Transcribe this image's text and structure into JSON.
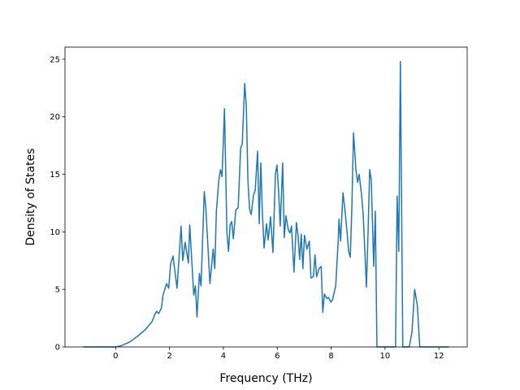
{
  "chart_data": {
    "type": "line",
    "xlabel": "Frequency (THz)",
    "ylabel": "Density of States",
    "xlim": [
      -1.88,
      13.05
    ],
    "ylim": [
      0,
      26.05
    ],
    "xticks": [
      0,
      2,
      4,
      6,
      8,
      10,
      12
    ],
    "yticks": [
      0,
      5,
      10,
      15,
      20,
      25
    ],
    "grid": false,
    "series": [
      {
        "color": "#1f77b4",
        "x": [
          -1.2,
          0,
          0.2,
          0.5,
          0.8,
          1.1,
          1.35,
          1.45,
          1.52,
          1.6,
          1.7,
          1.76,
          1.89,
          1.97,
          2.04,
          2.13,
          2.28,
          2.43,
          2.49,
          2.58,
          2.7,
          2.75,
          2.9,
          2.96,
          3.02,
          3.11,
          3.17,
          3.29,
          3.35,
          3.5,
          3.62,
          3.68,
          3.74,
          3.83,
          3.89,
          3.95,
          4.04,
          4.13,
          4.19,
          4.25,
          4.31,
          4.37,
          4.46,
          4.55,
          4.64,
          4.7,
          4.79,
          4.85,
          4.91,
          4.97,
          5.03,
          5.12,
          5.18,
          5.27,
          5.33,
          5.39,
          5.45,
          5.51,
          5.6,
          5.66,
          5.75,
          5.84,
          5.93,
          5.99,
          6.05,
          6.11,
          6.2,
          6.26,
          6.32,
          6.41,
          6.47,
          6.53,
          6.62,
          6.71,
          6.77,
          6.83,
          6.89,
          6.95,
          7.01,
          7.1,
          7.19,
          7.25,
          7.34,
          7.4,
          7.46,
          7.55,
          7.63,
          7.69,
          7.75,
          7.84,
          7.9,
          7.99,
          8.05,
          8.17,
          8.26,
          8.29,
          8.35,
          8.44,
          8.53,
          8.59,
          8.65,
          8.71,
          8.77,
          8.83,
          8.92,
          8.98,
          9.04,
          9.13,
          9.19,
          9.31,
          9.37,
          9.43,
          9.49,
          9.58,
          9.64,
          9.7,
          10.39,
          10.45,
          10.51,
          10.57,
          10.66,
          10.9,
          11.0,
          11.1,
          11.2,
          11.29,
          12.37
        ],
        "values": [
          0,
          0,
          0.1,
          0.4,
          0.9,
          1.5,
          2.2,
          2.8,
          3.1,
          2.9,
          3.4,
          4.5,
          5.5,
          5.1,
          7.2,
          7.9,
          5.1,
          10.5,
          7.5,
          9.1,
          7.3,
          10.6,
          4.5,
          5.3,
          2.6,
          6.4,
          5.3,
          13.5,
          12,
          5.5,
          8.5,
          6.8,
          11.8,
          14.5,
          15.4,
          14.8,
          20.7,
          10,
          8.3,
          10.6,
          10.9,
          9.4,
          11.9,
          12.1,
          17.3,
          17.6,
          22.9,
          21,
          14.5,
          12,
          11.5,
          13.2,
          13.6,
          17,
          10.7,
          16,
          11.5,
          8.6,
          10.7,
          9.3,
          11.3,
          8.2,
          15,
          15.8,
          13.5,
          10.5,
          16,
          9.5,
          11.4,
          10.2,
          9.9,
          10.5,
          6.5,
          10.8,
          9.7,
          7.6,
          9.8,
          6.8,
          9.7,
          8.5,
          9.2,
          6,
          6.1,
          8,
          6.1,
          6.8,
          7,
          3,
          4.6,
          4.2,
          4.3,
          3.9,
          4.1,
          5.3,
          9.1,
          11.1,
          9.2,
          13.4,
          11.5,
          10,
          8.3,
          7.8,
          12.2,
          18.6,
          15.4,
          14.3,
          15,
          13.2,
          11.5,
          5.2,
          9.9,
          15.4,
          14.5,
          7,
          11.8,
          0,
          0,
          13.1,
          8.3,
          24.8,
          0,
          0,
          1.3,
          5,
          3.6,
          0,
          0
        ]
      }
    ]
  }
}
